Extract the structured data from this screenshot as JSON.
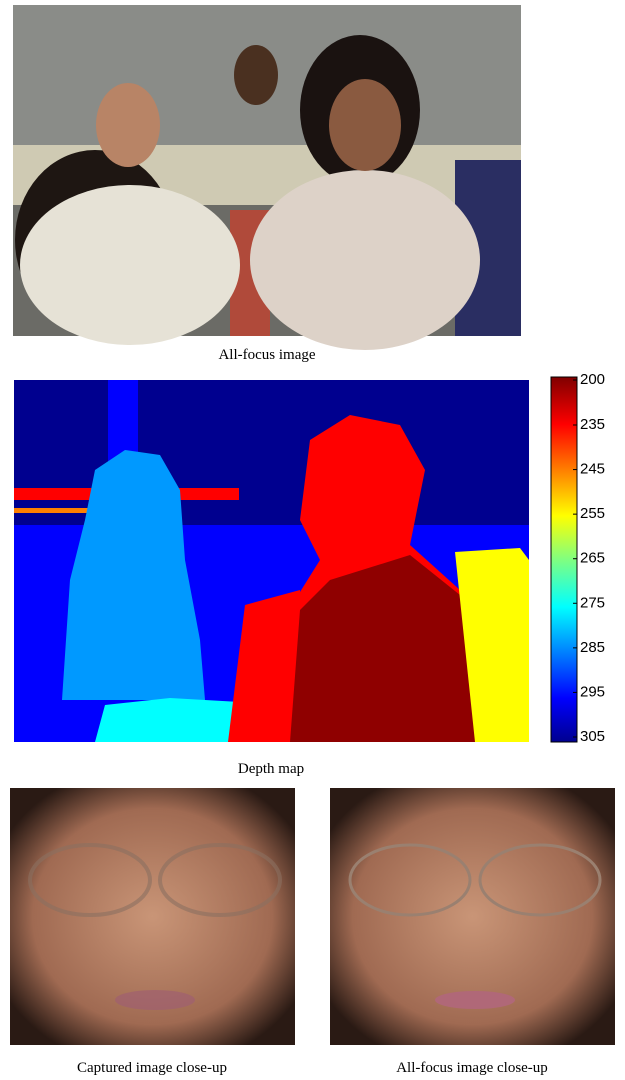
{
  "figure": {
    "captions": {
      "all_focus": "All-focus image",
      "depth_map": "Depth map",
      "captured_closeup": "Captured image close-up",
      "all_focus_closeup": "All-focus image close-up"
    },
    "colorbar": {
      "ticks": [
        "200",
        "235",
        "245",
        "255",
        "265",
        "275",
        "285",
        "295",
        "305"
      ]
    }
  }
}
